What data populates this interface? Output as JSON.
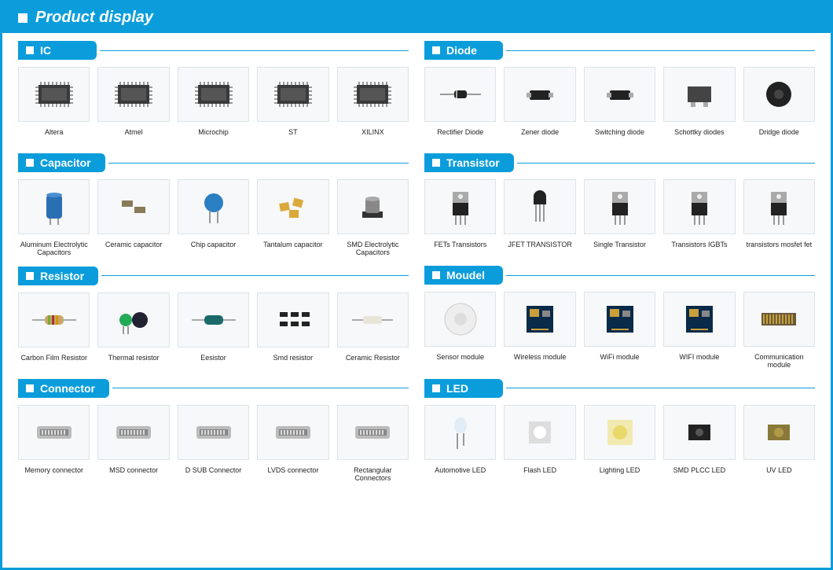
{
  "colors": {
    "brand": "#0b9ddb",
    "white": "#ffffff",
    "text": "#222222",
    "thumb_bg": "#f6f8f9",
    "thumb_border": "#dde3e7"
  },
  "header": {
    "title": "Product display"
  },
  "columns": [
    {
      "sections": [
        {
          "title": "IC",
          "items": [
            {
              "label": "Altera",
              "icon": "chip"
            },
            {
              "label": "Atmel",
              "icon": "chip"
            },
            {
              "label": "Microchip",
              "icon": "chip"
            },
            {
              "label": "ST",
              "icon": "chip"
            },
            {
              "label": "XILINX",
              "icon": "chip"
            }
          ]
        },
        {
          "title": "Capacitor",
          "items": [
            {
              "label": "Aluminum Electrolytic Capacitors",
              "icon": "cap-cyl"
            },
            {
              "label": "Ceramic capacitor",
              "icon": "cap-smd"
            },
            {
              "label": "Chip capacitor",
              "icon": "cap-disc"
            },
            {
              "label": "Tantalum capacitor",
              "icon": "cap-tant"
            },
            {
              "label": "SMD Electrolytic Capacitors",
              "icon": "cap-smd-cyl"
            }
          ]
        },
        {
          "title": "Resistor",
          "items": [
            {
              "label": "Carbon Film Resistor",
              "icon": "res-axial"
            },
            {
              "label": "Thermal resistor",
              "icon": "res-therm"
            },
            {
              "label": "Eesistor",
              "icon": "res-axial2"
            },
            {
              "label": "Smd resistor",
              "icon": "res-smd"
            },
            {
              "label": "Ceramic  Resistor",
              "icon": "res-cer"
            }
          ]
        },
        {
          "title": "Connector",
          "items": [
            {
              "label": "Memory connector",
              "icon": "conn"
            },
            {
              "label": "MSD connector",
              "icon": "conn"
            },
            {
              "label": "D SUB Connector",
              "icon": "conn"
            },
            {
              "label": "LVDS connector",
              "icon": "conn"
            },
            {
              "label": "Rectangular Connectors",
              "icon": "conn"
            }
          ]
        }
      ]
    },
    {
      "sections": [
        {
          "title": "Diode",
          "items": [
            {
              "label": "Rectifier Diode",
              "icon": "diode-axial"
            },
            {
              "label": "Zener diode",
              "icon": "diode-smd"
            },
            {
              "label": "Switching diode",
              "icon": "diode-smd"
            },
            {
              "label": "Schottky diodes",
              "icon": "diode-pkg"
            },
            {
              "label": "Dridge diode",
              "icon": "diode-bridge"
            }
          ]
        },
        {
          "title": "Transistor",
          "items": [
            {
              "label": "FETs Transistors",
              "icon": "to220"
            },
            {
              "label": "JFET TRANSISTOR",
              "icon": "to92"
            },
            {
              "label": "Single Transistor",
              "icon": "to220"
            },
            {
              "label": "Transistors IGBTs",
              "icon": "to220"
            },
            {
              "label": "transistors mosfet fet",
              "icon": "to220"
            }
          ]
        },
        {
          "title": "Moudel",
          "items": [
            {
              "label": "Sensor module",
              "icon": "mod-round"
            },
            {
              "label": "Wireless module",
              "icon": "mod-pcb"
            },
            {
              "label": "WiFi  module",
              "icon": "mod-pcb"
            },
            {
              "label": "WIFI module",
              "icon": "mod-pcb"
            },
            {
              "label": "Communication module",
              "icon": "mod-strip"
            }
          ]
        },
        {
          "title": "LED",
          "items": [
            {
              "label": "Automotive LED",
              "icon": "led-th"
            },
            {
              "label": "Flash LED",
              "icon": "led-flash"
            },
            {
              "label": "Lighting LED",
              "icon": "led-cob"
            },
            {
              "label": "SMD PLCC LED",
              "icon": "led-smd"
            },
            {
              "label": "UV LED",
              "icon": "led-uv"
            }
          ]
        }
      ]
    }
  ]
}
